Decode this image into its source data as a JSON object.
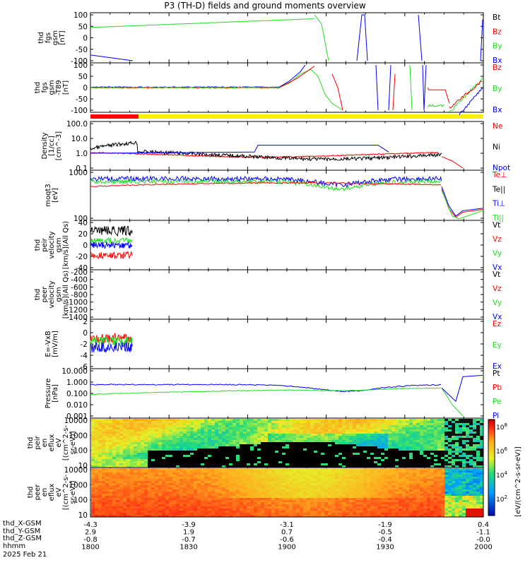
{
  "title": "P3 (TH-D) fields and ground moments overview",
  "colors": {
    "black": "#000000",
    "red": "#ff0000",
    "green": "#22dd22",
    "blue": "#0000ff",
    "yellow": "#ffee00"
  },
  "chart_data": {
    "type": "line",
    "panels": [
      {
        "name": "fgs-gsm",
        "ylabel": [
          "thd",
          "fgs",
          "gsm",
          "[nT]"
        ],
        "ticks": [
          "100",
          "50",
          "0",
          "-50",
          "-100"
        ],
        "legend": [
          {
            "label": "Bt",
            "color": "black"
          },
          {
            "label": "Bz",
            "color": "red"
          },
          {
            "label": "By",
            "color": "green"
          },
          {
            "label": "Bx",
            "color": "blue"
          }
        ]
      },
      {
        "name": "fgs-gsm-t89",
        "ylabel": [
          "thd",
          "fgs",
          "gsm",
          "-T89",
          "[nT]"
        ],
        "ticks": [
          "100",
          "50",
          "0",
          "-50",
          "-100"
        ],
        "legend": [
          {
            "label": "Bz",
            "color": "red"
          },
          {
            "label": "By",
            "color": "green"
          },
          {
            "label": "Bx",
            "color": "blue"
          }
        ]
      },
      {
        "name": "density",
        "ylabel": [
          "Density",
          "[1/cc]",
          "[cm^-3]"
        ],
        "ticks": [
          "100.0",
          "10.0",
          "1.0",
          "0.1"
        ],
        "legend": [
          {
            "label": "Ne",
            "color": "red"
          },
          {
            "label": "Ni",
            "color": "black"
          },
          {
            "label": "Npot",
            "color": "blue"
          }
        ]
      },
      {
        "name": "temperature",
        "ylabel": [
          "moqt3",
          "[eV]"
        ],
        "ticks": [
          "1000",
          "100"
        ],
        "legend": [
          {
            "label": "Te⊥",
            "color": "red"
          },
          {
            "label": "Te||",
            "color": "black"
          },
          {
            "label": "Ti⊥",
            "color": "blue"
          },
          {
            "label": "Ti||",
            "color": "green"
          }
        ]
      },
      {
        "name": "peir-velocity",
        "ylabel": [
          "thd",
          "peir",
          "velocity",
          "gsm",
          "[km/s](All Qs)"
        ],
        "ticks": [
          "40",
          "20",
          "0",
          "-20",
          "-40"
        ],
        "legend": [
          {
            "label": "Vt",
            "color": "black"
          },
          {
            "label": "Vz",
            "color": "red"
          },
          {
            "label": "Vy",
            "color": "green"
          },
          {
            "label": "Vx",
            "color": "blue"
          }
        ]
      },
      {
        "name": "peer-velocity",
        "ylabel": [
          "thd",
          "peer",
          "velocity",
          "gsm",
          "[km/s](All Qs)"
        ],
        "ticks": [
          "-200",
          "-400",
          "-600",
          "-800",
          "-1000",
          "-1200",
          "-1400"
        ],
        "legend": [
          {
            "label": "Vt",
            "color": "black"
          },
          {
            "label": "Vz",
            "color": "red"
          },
          {
            "label": "Vy",
            "color": "green"
          },
          {
            "label": "Vx",
            "color": "blue"
          }
        ]
      },
      {
        "name": "efield",
        "ylabel": [
          "E=-VxB",
          "[mV/m]"
        ],
        "ticks": [
          "2",
          "0",
          "-2",
          "-4",
          "-6"
        ],
        "legend": [
          {
            "label": "Ez",
            "color": "red"
          },
          {
            "label": "Ey",
            "color": "green"
          },
          {
            "label": "Ex",
            "color": "blue"
          }
        ]
      },
      {
        "name": "pressure",
        "ylabel": [
          "Pressure",
          "[nPa]"
        ],
        "ticks": [
          "10.000",
          "1.000",
          "0.100",
          "0.010",
          "0.001"
        ],
        "legend": [
          {
            "label": "Pt",
            "color": "black"
          },
          {
            "label": "Pb",
            "color": "red"
          },
          {
            "label": "Pe",
            "color": "green"
          },
          {
            "label": "Pi",
            "color": "blue"
          }
        ]
      },
      {
        "name": "peir-spectrogram",
        "ylabel": [
          "thd",
          "peir",
          "en",
          "eflux",
          "eV",
          "[(cm^2-s-",
          "sr-eV)]"
        ],
        "ticks": [
          "10000",
          "1000",
          "100",
          "10"
        ]
      },
      {
        "name": "peer-spectrogram",
        "ylabel": [
          "thd",
          "peer",
          "en",
          "eflux",
          "eV",
          "[(cm^2-s-",
          "sr-eV)]"
        ],
        "ticks": [
          "10000",
          "1000",
          "100",
          "10"
        ]
      }
    ],
    "colorbar": {
      "label": "[eV/(cm^2-s-sr-eV)]",
      "ticks": [
        "10^8",
        "10^6",
        "10^4",
        "10^2"
      ]
    },
    "xaxis": {
      "rows": [
        "thd_X-GSM",
        "thd_Y-GSM",
        "thd_Z-GSM",
        "hhmm"
      ],
      "columns": [
        [
          "-4.3",
          "2.9",
          "-0.8",
          "1800"
        ],
        [
          "-3.9",
          "1.9",
          "-0.7",
          "1830"
        ],
        [
          "-3.1",
          "0.7",
          "-0.6",
          "1900"
        ],
        [
          "-1.9",
          "-0.5",
          "-0.4",
          "1930"
        ],
        [
          "0.4",
          "-1.1",
          "-0.0",
          "2000"
        ]
      ]
    },
    "date": "2025 Feb 21"
  }
}
